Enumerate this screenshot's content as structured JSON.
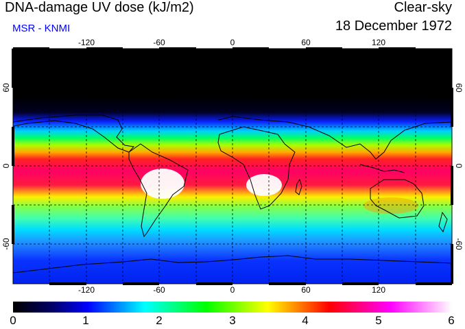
{
  "header": {
    "title": "DNA-damage UV dose (kJ/m2)",
    "source": "MSR - KNMI",
    "sky_condition": "Clear-sky",
    "date": "18 December 1972"
  },
  "map": {
    "projection": "equirectangular",
    "lon_range": [
      -180,
      180
    ],
    "lat_range": [
      -90,
      90
    ],
    "lon_ticks": [
      -120,
      -60,
      0,
      60,
      120
    ],
    "lat_ticks": [
      60,
      0,
      -60
    ],
    "graticule": "dashed, 30 degree spacing",
    "coastlines": "black outlines"
  },
  "colorbar": {
    "min": 0,
    "max": 6,
    "tick_labels": [
      "0",
      "1",
      "2",
      "3",
      "4",
      "5",
      "6"
    ],
    "colors": [
      "#000000",
      "#0000ff",
      "#00ffff",
      "#00ff00",
      "#ffff00",
      "#ff0000",
      "#ff00ff",
      "#ffffff"
    ]
  }
}
